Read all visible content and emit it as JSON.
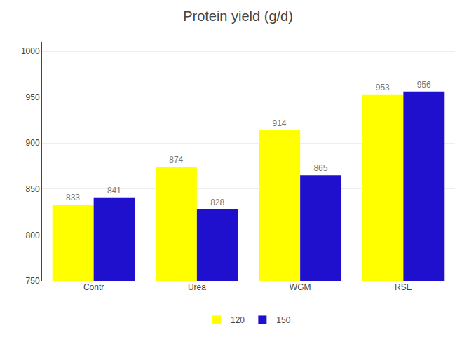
{
  "chart_data": {
    "type": "bar",
    "title": "Protein yield (g/d)",
    "categories": [
      "Contr",
      "Urea",
      "WGM",
      "RSE"
    ],
    "series": [
      {
        "name": "120",
        "color": "#FFFF00",
        "values": [
          833,
          874,
          914,
          953
        ]
      },
      {
        "name": "150",
        "color": "#1E10CC",
        "values": [
          841,
          828,
          865,
          956
        ]
      }
    ],
    "ylim": [
      750,
      1010
    ],
    "yticks": [
      750,
      800,
      850,
      900,
      950,
      1000
    ],
    "grid": true,
    "legend": "bottom",
    "data_labels": true
  }
}
